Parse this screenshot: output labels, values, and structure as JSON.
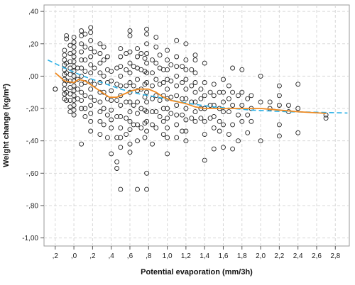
{
  "chart_data": {
    "type": "scatter",
    "title": "",
    "xlabel": "Potential evaporation (mm/3h)",
    "ylabel": "Weight change (kg/m²)",
    "xlim": [
      -0.32,
      2.95
    ],
    "ylim": [
      -1.05,
      0.44
    ],
    "x_ticks": [
      -0.2,
      0.0,
      0.2,
      0.4,
      0.6,
      0.8,
      1.0,
      1.2,
      1.4,
      1.6,
      1.8,
      2.0,
      2.2,
      2.4,
      2.6,
      2.8
    ],
    "x_tick_labels": [
      ",2",
      ",0",
      ",2",
      ",4",
      ",6",
      ",8",
      "1,0",
      "1,2",
      "1,4",
      "1,6",
      "1,8",
      "2,0",
      "2,2",
      "2,4",
      "2,6",
      "2,8"
    ],
    "y_ticks": [
      0.4,
      0.2,
      0.0,
      -0.2,
      -0.4,
      -0.6,
      -0.8,
      -1.0
    ],
    "y_tick_labels": [
      ",40",
      ",20",
      ",00",
      "-,20",
      "-,40",
      "-,60",
      "-,80",
      "-1,00"
    ],
    "grid": true,
    "marker": "open-circle",
    "colors": {
      "points": "#222222",
      "loess": "#ee8a22",
      "fit": "#2ab0e6",
      "grid": "#d8d8d8"
    },
    "points": [
      [
        -0.2,
        -0.08
      ],
      [
        -0.2,
        -0.08
      ],
      [
        -0.1,
        0.1
      ],
      [
        -0.1,
        0.07
      ],
      [
        -0.1,
        0.04
      ],
      [
        -0.1,
        0.01
      ],
      [
        -0.1,
        -0.02
      ],
      [
        -0.1,
        -0.05
      ],
      [
        -0.1,
        -0.08
      ],
      [
        -0.1,
        -0.11
      ],
      [
        -0.1,
        -0.14
      ],
      [
        -0.1,
        0.13
      ],
      [
        -0.1,
        0.16
      ],
      [
        -0.08,
        0.23
      ],
      [
        -0.08,
        0.25
      ],
      [
        -0.08,
        0.08
      ],
      [
        -0.08,
        0.02
      ],
      [
        -0.08,
        -0.03
      ],
      [
        -0.08,
        -0.1
      ],
      [
        -0.08,
        -0.15
      ],
      [
        -0.04,
        0.19
      ],
      [
        -0.04,
        0.14
      ],
      [
        -0.04,
        0.09
      ],
      [
        -0.04,
        0.05
      ],
      [
        -0.04,
        0.01
      ],
      [
        -0.04,
        -0.03
      ],
      [
        -0.04,
        -0.07
      ],
      [
        -0.04,
        -0.11
      ],
      [
        -0.04,
        -0.15
      ],
      [
        -0.04,
        -0.19
      ],
      [
        -0.04,
        -0.22
      ],
      [
        0.0,
        0.24
      ],
      [
        0.0,
        0.21
      ],
      [
        0.0,
        0.18
      ],
      [
        0.0,
        0.15
      ],
      [
        0.0,
        0.12
      ],
      [
        0.0,
        0.09
      ],
      [
        0.0,
        0.06
      ],
      [
        0.0,
        0.03
      ],
      [
        0.0,
        0.0
      ],
      [
        0.0,
        -0.03
      ],
      [
        0.0,
        -0.06
      ],
      [
        0.0,
        -0.09
      ],
      [
        0.0,
        -0.12
      ],
      [
        0.0,
        -0.15
      ],
      [
        0.0,
        -0.18
      ],
      [
        0.0,
        -0.21
      ],
      [
        0.0,
        -0.24
      ],
      [
        0.04,
        0.05
      ],
      [
        0.04,
        -0.02
      ],
      [
        0.04,
        -0.08
      ],
      [
        0.04,
        -0.14
      ],
      [
        0.08,
        0.28
      ],
      [
        0.08,
        0.25
      ],
      [
        0.08,
        0.2
      ],
      [
        0.08,
        0.15
      ],
      [
        0.08,
        0.1
      ],
      [
        0.08,
        0.05
      ],
      [
        0.08,
        0.0
      ],
      [
        0.08,
        -0.05
      ],
      [
        0.08,
        -0.1
      ],
      [
        0.08,
        -0.15
      ],
      [
        0.08,
        -0.2
      ],
      [
        0.08,
        -0.42
      ],
      [
        0.12,
        0.26
      ],
      [
        0.12,
        0.18
      ],
      [
        0.12,
        0.1
      ],
      [
        0.12,
        0.03
      ],
      [
        0.12,
        -0.04
      ],
      [
        0.12,
        -0.12
      ],
      [
        0.12,
        -0.2
      ],
      [
        0.12,
        -0.25
      ],
      [
        0.18,
        0.3
      ],
      [
        0.18,
        0.27
      ],
      [
        0.18,
        0.22
      ],
      [
        0.18,
        0.17
      ],
      [
        0.18,
        0.12
      ],
      [
        0.18,
        0.07
      ],
      [
        0.18,
        0.02
      ],
      [
        0.18,
        -0.03
      ],
      [
        0.18,
        -0.08
      ],
      [
        0.18,
        -0.13
      ],
      [
        0.18,
        -0.18
      ],
      [
        0.18,
        -0.23
      ],
      [
        0.18,
        -0.28
      ],
      [
        0.18,
        -0.34
      ],
      [
        0.22,
        0.15
      ],
      [
        0.22,
        0.05
      ],
      [
        0.22,
        -0.05
      ],
      [
        0.22,
        -0.15
      ],
      [
        0.28,
        0.2
      ],
      [
        0.28,
        0.14
      ],
      [
        0.28,
        0.08
      ],
      [
        0.28,
        0.02
      ],
      [
        0.28,
        -0.04
      ],
      [
        0.28,
        -0.1
      ],
      [
        0.28,
        -0.16
      ],
      [
        0.28,
        -0.22
      ],
      [
        0.28,
        -0.28
      ],
      [
        0.28,
        -0.36
      ],
      [
        0.32,
        0.18
      ],
      [
        0.32,
        0.1
      ],
      [
        0.32,
        0.0
      ],
      [
        0.32,
        -0.1
      ],
      [
        0.32,
        -0.2
      ],
      [
        0.32,
        -0.3
      ],
      [
        0.36,
        0.12
      ],
      [
        0.36,
        0.04
      ],
      [
        0.36,
        -0.04
      ],
      [
        0.36,
        -0.14
      ],
      [
        0.36,
        -0.24
      ],
      [
        0.36,
        -0.38
      ],
      [
        0.4,
        0.03
      ],
      [
        0.4,
        -0.03
      ],
      [
        0.4,
        -0.09
      ],
      [
        0.4,
        -0.15
      ],
      [
        0.4,
        -0.21
      ],
      [
        0.4,
        -0.27
      ],
      [
        0.4,
        -0.32
      ],
      [
        0.4,
        -0.48
      ],
      [
        0.46,
        0.05
      ],
      [
        0.46,
        -0.05
      ],
      [
        0.46,
        -0.15
      ],
      [
        0.46,
        -0.25
      ],
      [
        0.46,
        -0.38
      ],
      [
        0.46,
        -0.53
      ],
      [
        0.46,
        -0.57
      ],
      [
        0.5,
        0.17
      ],
      [
        0.5,
        0.12
      ],
      [
        0.5,
        0.06
      ],
      [
        0.5,
        0.0
      ],
      [
        0.5,
        -0.06
      ],
      [
        0.5,
        -0.12
      ],
      [
        0.5,
        -0.18
      ],
      [
        0.5,
        -0.25
      ],
      [
        0.5,
        -0.32
      ],
      [
        0.5,
        -0.38
      ],
      [
        0.5,
        -0.44
      ],
      [
        0.5,
        -0.7
      ],
      [
        0.56,
        0.14
      ],
      [
        0.56,
        0.04
      ],
      [
        0.56,
        -0.06
      ],
      [
        0.56,
        -0.16
      ],
      [
        0.56,
        -0.26
      ],
      [
        0.56,
        -0.36
      ],
      [
        0.6,
        0.28
      ],
      [
        0.6,
        0.25
      ],
      [
        0.6,
        0.15
      ],
      [
        0.6,
        0.08
      ],
      [
        0.6,
        0.02
      ],
      [
        0.6,
        -0.04
      ],
      [
        0.6,
        -0.1
      ],
      [
        0.6,
        -0.16
      ],
      [
        0.6,
        -0.22
      ],
      [
        0.6,
        -0.28
      ],
      [
        0.6,
        -0.33
      ],
      [
        0.6,
        -0.42
      ],
      [
        0.6,
        -0.47
      ],
      [
        0.64,
        0.06
      ],
      [
        0.64,
        -0.06
      ],
      [
        0.64,
        -0.18
      ],
      [
        0.64,
        -0.3
      ],
      [
        0.68,
        0.17
      ],
      [
        0.68,
        0.12
      ],
      [
        0.68,
        0.05
      ],
      [
        0.68,
        -0.02
      ],
      [
        0.68,
        -0.09
      ],
      [
        0.68,
        -0.16
      ],
      [
        0.68,
        -0.23
      ],
      [
        0.68,
        -0.3
      ],
      [
        0.68,
        -0.4
      ],
      [
        0.68,
        -0.7
      ],
      [
        0.72,
        0.14
      ],
      [
        0.72,
        0.04
      ],
      [
        0.72,
        -0.08
      ],
      [
        0.72,
        -0.2
      ],
      [
        0.72,
        -0.32
      ],
      [
        0.76,
        0.11
      ],
      [
        0.76,
        0.03
      ],
      [
        0.76,
        -0.05
      ],
      [
        0.76,
        -0.13
      ],
      [
        0.76,
        -0.21
      ],
      [
        0.76,
        -0.29
      ],
      [
        0.76,
        -0.38
      ],
      [
        0.78,
        0.29
      ],
      [
        0.78,
        0.26
      ],
      [
        0.78,
        0.2
      ],
      [
        0.78,
        0.14
      ],
      [
        0.78,
        0.08
      ],
      [
        0.78,
        0.02
      ],
      [
        0.78,
        -0.04
      ],
      [
        0.78,
        -0.1
      ],
      [
        0.78,
        -0.16
      ],
      [
        0.78,
        -0.22
      ],
      [
        0.78,
        -0.28
      ],
      [
        0.78,
        -0.34
      ],
      [
        0.78,
        -0.6
      ],
      [
        0.78,
        -0.7
      ],
      [
        0.84,
        0.1
      ],
      [
        0.84,
        0.02
      ],
      [
        0.84,
        -0.06
      ],
      [
        0.84,
        -0.14
      ],
      [
        0.84,
        -0.22
      ],
      [
        0.84,
        -0.3
      ],
      [
        0.84,
        -0.42
      ],
      [
        0.88,
        0.24
      ],
      [
        0.88,
        0.18
      ],
      [
        0.88,
        0.08
      ],
      [
        0.88,
        -0.02
      ],
      [
        0.88,
        -0.12
      ],
      [
        0.88,
        -0.22
      ],
      [
        0.88,
        -0.32
      ],
      [
        0.92,
        0.13
      ],
      [
        0.92,
        0.05
      ],
      [
        0.92,
        -0.05
      ],
      [
        0.92,
        -0.15
      ],
      [
        0.92,
        -0.25
      ],
      [
        0.96,
        0.04
      ],
      [
        0.96,
        -0.04
      ],
      [
        0.96,
        -0.12
      ],
      [
        0.96,
        -0.2
      ],
      [
        0.96,
        -0.28
      ],
      [
        0.96,
        -0.36
      ],
      [
        1.0,
        0.16
      ],
      [
        1.0,
        0.1
      ],
      [
        1.0,
        0.04
      ],
      [
        1.0,
        -0.02
      ],
      [
        1.0,
        -0.08
      ],
      [
        1.0,
        -0.14
      ],
      [
        1.0,
        -0.2
      ],
      [
        1.0,
        -0.26
      ],
      [
        1.0,
        -0.32
      ],
      [
        1.0,
        -0.38
      ],
      [
        1.0,
        -0.48
      ],
      [
        1.04,
        0.07
      ],
      [
        1.04,
        -0.03
      ],
      [
        1.04,
        -0.13
      ],
      [
        1.04,
        -0.23
      ],
      [
        1.1,
        0.22
      ],
      [
        1.1,
        0.12
      ],
      [
        1.1,
        0.06
      ],
      [
        1.1,
        0.0
      ],
      [
        1.1,
        -0.06
      ],
      [
        1.1,
        -0.12
      ],
      [
        1.1,
        -0.18
      ],
      [
        1.1,
        -0.24
      ],
      [
        1.1,
        -0.3
      ],
      [
        1.1,
        -0.38
      ],
      [
        1.16,
        0.06
      ],
      [
        1.16,
        -0.04
      ],
      [
        1.16,
        -0.14
      ],
      [
        1.16,
        -0.24
      ],
      [
        1.16,
        -0.34
      ],
      [
        1.2,
        0.2
      ],
      [
        1.2,
        0.1
      ],
      [
        1.2,
        0.04
      ],
      [
        1.2,
        -0.02
      ],
      [
        1.2,
        -0.08
      ],
      [
        1.2,
        -0.14
      ],
      [
        1.2,
        -0.2
      ],
      [
        1.2,
        -0.27
      ],
      [
        1.2,
        -0.34
      ],
      [
        1.2,
        -0.4
      ],
      [
        1.26,
        0.04
      ],
      [
        1.26,
        -0.06
      ],
      [
        1.26,
        -0.16
      ],
      [
        1.26,
        -0.26
      ],
      [
        1.3,
        0.13
      ],
      [
        1.3,
        0.1
      ],
      [
        1.3,
        0.02
      ],
      [
        1.3,
        -0.04
      ],
      [
        1.3,
        -0.1
      ],
      [
        1.3,
        -0.16
      ],
      [
        1.3,
        -0.22
      ],
      [
        1.3,
        -0.28
      ],
      [
        1.36,
        -0.08
      ],
      [
        1.36,
        -0.14
      ],
      [
        1.36,
        -0.2
      ],
      [
        1.36,
        -0.26
      ],
      [
        1.4,
        0.08
      ],
      [
        1.4,
        -0.04
      ],
      [
        1.4,
        -0.12
      ],
      [
        1.4,
        -0.2
      ],
      [
        1.4,
        -0.28
      ],
      [
        1.4,
        -0.36
      ],
      [
        1.4,
        -0.52
      ],
      [
        1.46,
        -0.1
      ],
      [
        1.46,
        -0.18
      ],
      [
        1.46,
        -0.26
      ],
      [
        1.5,
        -0.05
      ],
      [
        1.5,
        -0.12
      ],
      [
        1.5,
        -0.18
      ],
      [
        1.5,
        -0.25
      ],
      [
        1.5,
        -0.32
      ],
      [
        1.5,
        -0.45
      ],
      [
        1.56,
        -0.1
      ],
      [
        1.56,
        -0.2
      ],
      [
        1.56,
        -0.28
      ],
      [
        1.56,
        -0.34
      ],
      [
        1.6,
        -0.02
      ],
      [
        1.6,
        -0.1
      ],
      [
        1.6,
        -0.16
      ],
      [
        1.6,
        -0.22
      ],
      [
        1.6,
        -0.3
      ],
      [
        1.6,
        -0.44
      ],
      [
        1.66,
        -0.06
      ],
      [
        1.66,
        -0.14
      ],
      [
        1.66,
        -0.22
      ],
      [
        1.66,
        -0.36
      ],
      [
        1.7,
        0.05
      ],
      [
        1.7,
        -0.1
      ],
      [
        1.7,
        -0.18
      ],
      [
        1.7,
        -0.3
      ],
      [
        1.7,
        -0.45
      ],
      [
        1.76,
        -0.12
      ],
      [
        1.76,
        -0.24
      ],
      [
        1.76,
        -0.4
      ],
      [
        1.8,
        0.04
      ],
      [
        1.8,
        -0.1
      ],
      [
        1.8,
        -0.18
      ],
      [
        1.8,
        -0.28
      ],
      [
        1.86,
        -0.14
      ],
      [
        1.86,
        -0.24
      ],
      [
        1.86,
        -0.35
      ],
      [
        1.9,
        -0.12
      ],
      [
        1.9,
        -0.2
      ],
      [
        1.9,
        -0.28
      ],
      [
        2.0,
        0.0
      ],
      [
        2.0,
        -0.16
      ],
      [
        2.0,
        -0.4
      ],
      [
        2.1,
        -0.16
      ],
      [
        2.1,
        -0.2
      ],
      [
        2.2,
        -0.06
      ],
      [
        2.2,
        -0.12
      ],
      [
        2.2,
        -0.18
      ],
      [
        2.2,
        -0.3
      ],
      [
        2.2,
        -0.37
      ],
      [
        2.3,
        -0.18
      ],
      [
        2.3,
        -0.22
      ],
      [
        2.4,
        -0.05
      ],
      [
        2.4,
        -0.2
      ],
      [
        2.4,
        -0.35
      ],
      [
        2.7,
        -0.24
      ],
      [
        2.7,
        -0.26
      ]
    ],
    "loess_line": [
      [
        -0.2,
        0.02
      ],
      [
        -0.1,
        -0.03
      ],
      [
        0.0,
        -0.04
      ],
      [
        0.05,
        -0.02
      ],
      [
        0.12,
        -0.03
      ],
      [
        0.2,
        -0.06
      ],
      [
        0.3,
        -0.1
      ],
      [
        0.38,
        -0.13
      ],
      [
        0.46,
        -0.13
      ],
      [
        0.54,
        -0.11
      ],
      [
        0.62,
        -0.09
      ],
      [
        0.7,
        -0.08
      ],
      [
        0.8,
        -0.08
      ],
      [
        0.88,
        -0.1
      ],
      [
        0.96,
        -0.13
      ],
      [
        1.04,
        -0.15
      ],
      [
        1.12,
        -0.16
      ],
      [
        1.2,
        -0.17
      ],
      [
        1.3,
        -0.19
      ],
      [
        1.4,
        -0.2
      ],
      [
        1.5,
        -0.2
      ],
      [
        1.6,
        -0.2
      ],
      [
        1.8,
        -0.2
      ],
      [
        2.0,
        -0.2
      ],
      [
        2.2,
        -0.21
      ],
      [
        2.4,
        -0.22
      ],
      [
        2.7,
        -0.23
      ]
    ],
    "fit_line": [
      [
        -0.28,
        0.1
      ],
      [
        -0.1,
        0.05
      ],
      [
        0.1,
        0.0
      ],
      [
        0.3,
        -0.04
      ],
      [
        0.5,
        -0.08
      ],
      [
        0.7,
        -0.11
      ],
      [
        0.9,
        -0.13
      ],
      [
        1.1,
        -0.155
      ],
      [
        1.3,
        -0.175
      ],
      [
        1.5,
        -0.19
      ],
      [
        1.7,
        -0.2
      ],
      [
        1.9,
        -0.21
      ],
      [
        2.1,
        -0.215
      ],
      [
        2.3,
        -0.22
      ],
      [
        2.5,
        -0.222
      ],
      [
        2.7,
        -0.225
      ],
      [
        2.93,
        -0.228
      ]
    ]
  }
}
